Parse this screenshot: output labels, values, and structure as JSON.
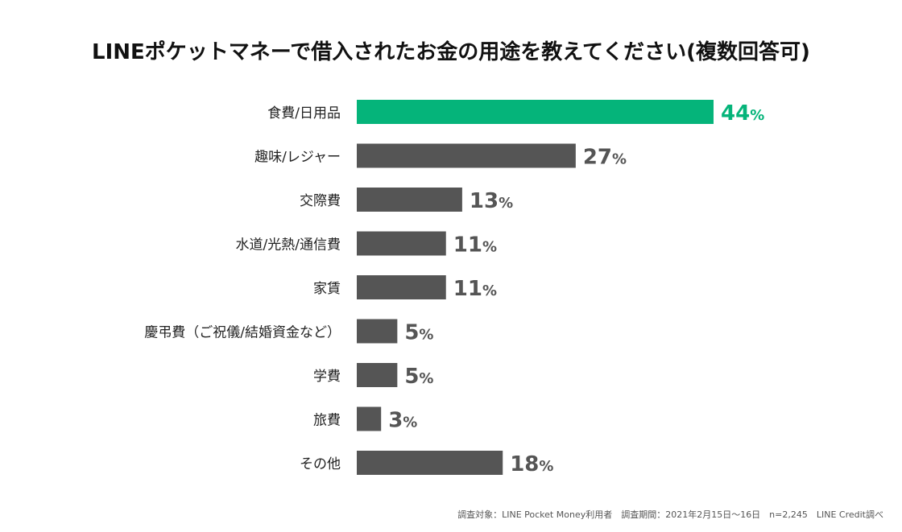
{
  "chart_data": {
    "type": "bar",
    "orientation": "horizontal",
    "title": "LINEポケットマネーで借入されたお金の用途を教えてください(複数回答可)",
    "categories": [
      "食費/日用品",
      "趣味/レジャー",
      "交際費",
      "水道/光熱/通信費",
      "家賃",
      "慶弔費（ご祝儀/結婚資金など）",
      "学費",
      "旅費",
      "その他"
    ],
    "values": [
      44,
      27,
      13,
      11,
      11,
      5,
      5,
      3,
      18
    ],
    "value_labels": [
      "44",
      "27",
      "13",
      "11",
      "11",
      "5",
      "5",
      "3",
      "18"
    ],
    "unit": "%",
    "xlim": [
      0,
      44
    ],
    "highlight_index": 0,
    "colors": {
      "highlight": "#05b47a",
      "bar": "#555555",
      "label_text": "#222222",
      "title_text": "#111111",
      "footnote_text": "#555555"
    },
    "grid": false,
    "legend": "none",
    "footnote": "調査対象：LINE Pocket Money利用者　調査期間：2021年2月15日〜16日　n=2,245　LINE Credit調べ"
  }
}
